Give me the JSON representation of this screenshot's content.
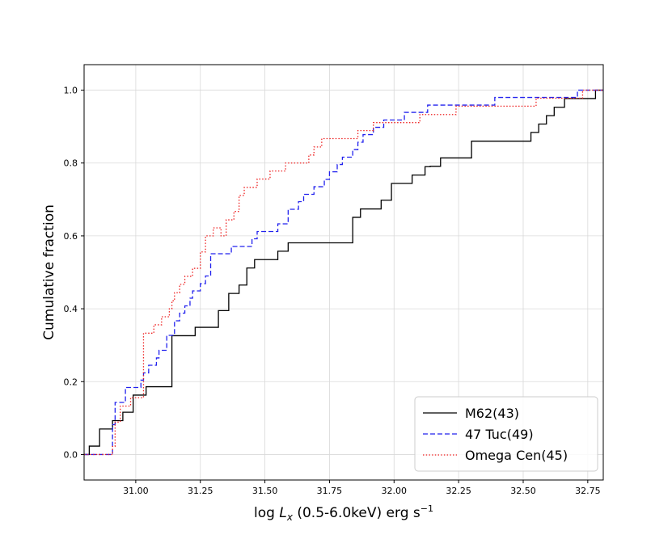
{
  "chart_data": {
    "type": "line",
    "step": true,
    "xlabel": "log L_x (0.5-6.0keV) erg s^-1",
    "xlabel_parts": {
      "prefix": "log ",
      "symbol": "L",
      "subscript": "x",
      "middle": " (0.5-6.0keV) erg s",
      "superscript": "−1"
    },
    "ylabel": "Cumulative fraction",
    "xlim": [
      30.8,
      32.81
    ],
    "ylim": [
      -0.07,
      1.07
    ],
    "xticks": [
      31.0,
      31.25,
      31.5,
      31.75,
      32.0,
      32.25,
      32.5,
      32.75
    ],
    "xtick_labels": [
      "31.00",
      "31.25",
      "31.50",
      "31.75",
      "32.00",
      "32.25",
      "32.50",
      "32.75"
    ],
    "yticks": [
      0.0,
      0.2,
      0.4,
      0.6,
      0.8,
      1.0
    ],
    "ytick_labels": [
      "0.0",
      "0.2",
      "0.4",
      "0.6",
      "0.8",
      "1.0"
    ],
    "grid": true,
    "legend_position": "lower-right",
    "series": [
      {
        "name": "M62(43)",
        "color": "#000000",
        "linestyle": "solid",
        "x": [
          30.82,
          30.86,
          30.91,
          30.95,
          30.99,
          31.04,
          31.14,
          31.23,
          31.32,
          31.36,
          31.4,
          31.43,
          31.46,
          31.49,
          31.55,
          31.59,
          31.63,
          31.84,
          31.87,
          31.95,
          31.99,
          32.03,
          32.07,
          32.12,
          32.14,
          32.18,
          32.22,
          32.3,
          32.53,
          32.56,
          32.59,
          32.62,
          32.66,
          32.7,
          32.78
        ],
        "y": [
          0.023,
          0.07,
          0.093,
          0.116,
          0.163,
          0.186,
          0.326,
          0.349,
          0.395,
          0.442,
          0.465,
          0.512,
          0.535,
          0.535,
          0.558,
          0.581,
          0.581,
          0.651,
          0.674,
          0.698,
          0.744,
          0.744,
          0.767,
          0.79,
          0.791,
          0.814,
          0.814,
          0.86,
          0.884,
          0.907,
          0.93,
          0.953,
          0.977,
          0.977,
          1.0
        ],
        "start": [
          30.8,
          0.0
        ],
        "end_x": 32.81
      },
      {
        "name": "47 Tuc(49)",
        "color": "#2222ee",
        "linestyle": "dashed",
        "x": [
          30.91,
          30.92,
          30.96,
          31.02,
          31.03,
          31.05,
          31.08,
          31.09,
          31.12,
          31.15,
          31.17,
          31.19,
          31.21,
          31.22,
          31.25,
          31.27,
          31.29,
          31.37,
          31.39,
          31.45,
          31.47,
          31.55,
          31.59,
          31.63,
          31.65,
          31.69,
          31.73,
          31.75,
          31.78,
          31.8,
          31.84,
          31.86,
          31.88,
          31.92,
          31.96,
          32.01,
          32.04,
          32.08,
          32.13,
          32.15,
          32.24,
          32.39,
          32.48,
          32.54,
          32.6,
          32.66,
          32.68,
          32.71,
          32.73
        ],
        "y": [
          0.082,
          0.143,
          0.184,
          0.204,
          0.224,
          0.245,
          0.265,
          0.286,
          0.327,
          0.367,
          0.388,
          0.408,
          0.429,
          0.449,
          0.469,
          0.49,
          0.551,
          0.571,
          0.571,
          0.592,
          0.612,
          0.633,
          0.673,
          0.694,
          0.714,
          0.735,
          0.755,
          0.776,
          0.796,
          0.816,
          0.837,
          0.857,
          0.878,
          0.898,
          0.918,
          0.918,
          0.939,
          0.939,
          0.959,
          0.959,
          0.959,
          0.98,
          0.98,
          0.98,
          0.98,
          0.98,
          0.98,
          1.0,
          1.0
        ],
        "start": [
          30.8,
          0.0
        ],
        "end_x": 32.81
      },
      {
        "name": "Omega Cen(45)",
        "color": "#ee2222",
        "linestyle": "dotted",
        "x": [
          30.91,
          30.92,
          30.94,
          30.98,
          31.03,
          31.07,
          31.1,
          31.13,
          31.14,
          31.15,
          31.17,
          31.19,
          31.22,
          31.25,
          31.27,
          31.3,
          31.33,
          31.35,
          31.38,
          31.4,
          31.42,
          31.44,
          31.47,
          31.5,
          31.52,
          31.55,
          31.58,
          31.62,
          31.67,
          31.69,
          31.72,
          31.76,
          31.78,
          31.84,
          31.86,
          31.89,
          31.92,
          32.05,
          32.1,
          32.15,
          32.24,
          32.42,
          32.55,
          32.71,
          32.73
        ],
        "y": [
          0.022,
          0.089,
          0.133,
          0.156,
          0.333,
          0.356,
          0.378,
          0.4,
          0.422,
          0.444,
          0.467,
          0.489,
          0.511,
          0.556,
          0.6,
          0.622,
          0.6,
          0.644,
          0.667,
          0.711,
          0.733,
          0.733,
          0.756,
          0.756,
          0.778,
          0.778,
          0.8,
          0.8,
          0.822,
          0.844,
          0.867,
          0.867,
          0.867,
          0.867,
          0.889,
          0.889,
          0.911,
          0.911,
          0.933,
          0.933,
          0.956,
          0.956,
          0.978,
          0.978,
          1.0
        ],
        "start": [
          30.8,
          0.0
        ],
        "end_x": 32.81
      }
    ]
  }
}
